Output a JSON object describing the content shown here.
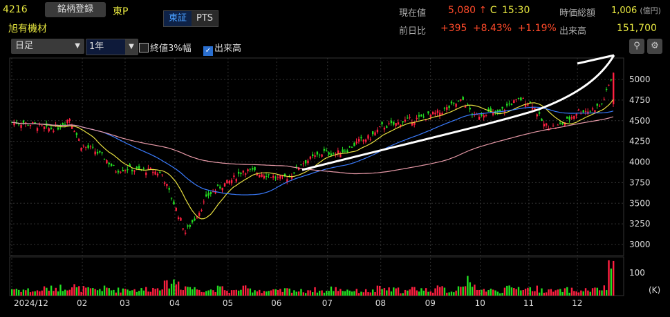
{
  "header": {
    "code": "4216",
    "register_button": "銘柄登録",
    "market": "東P",
    "name": "旭有機材",
    "tab_tse": "東証",
    "tab_pts": "PTS",
    "period_select": "日足",
    "range_select": "1年",
    "checkbox_3pct": "終値3%幅",
    "checkbox_3pct_checked": false,
    "checkbox_volume": "出来高",
    "checkbox_volume_checked": true
  },
  "quote": {
    "price_label": "現在値",
    "price": "5,080",
    "arrow": "↑",
    "close_flag": "C",
    "time": "15:30",
    "mcap_label": "時価総額",
    "mcap": "1,006",
    "mcap_unit": "(億円)",
    "change_label": "前日比",
    "change": "+395",
    "change_pct": "+8.43%",
    "change_extra": "+1.19%",
    "volume_label": "出来高",
    "volume": "151,700"
  },
  "icons": {
    "zoom": "zoom-icon",
    "settings": "gear-icon"
  },
  "colors": {
    "up": "#ff2040",
    "down": "#22e022",
    "ma_short": "#e8e040",
    "ma_mid": "#3a7cff",
    "ma_long": "#e89aa8"
  },
  "chart_data": {
    "type": "candlestick",
    "title": "旭有機材 日足 1年",
    "y_ticks": [
      3000,
      3250,
      3500,
      3750,
      4000,
      4250,
      4500,
      4750,
      5000
    ],
    "ylim": [
      2930,
      5180
    ],
    "x_labels": [
      "2024/12",
      "02",
      "03",
      "04",
      "05",
      "06",
      "07",
      "08",
      "09",
      "10",
      "11",
      "12"
    ],
    "x_label_weeks": [
      0,
      6.1,
      9.8,
      14.1,
      18.7,
      22.9,
      27.3,
      31.9,
      36.2,
      40.5,
      44.7,
      48.9
    ],
    "weekly_close": [
      4480,
      4470,
      4450,
      4400,
      4420,
      4530,
      4200,
      4150,
      4050,
      3900,
      3920,
      3900,
      3900,
      3850,
      3500,
      3150,
      3350,
      3600,
      3700,
      3780,
      3900,
      3880,
      3850,
      3800,
      3820,
      3980,
      4050,
      4120,
      4100,
      4150,
      4250,
      4300,
      4430,
      4450,
      4500,
      4520,
      4560,
      4600,
      4680,
      4750,
      4550,
      4600,
      4580,
      4700,
      4760,
      4700,
      4450,
      4420,
      4500,
      4620,
      4620,
      4700,
      5080
    ],
    "volume_unit": "(K)",
    "volume_ticks": [
      100
    ],
    "vlim": [
      0,
      160
    ],
    "weekly_volume": [
      30,
      25,
      20,
      30,
      35,
      40,
      30,
      25,
      30,
      25,
      30,
      25,
      30,
      45,
      60,
      40,
      30,
      25,
      30,
      20,
      30,
      25,
      20,
      20,
      25,
      20,
      25,
      20,
      30,
      25,
      20,
      20,
      30,
      25,
      20,
      30,
      25,
      30,
      20,
      60,
      40,
      25,
      20,
      30,
      35,
      30,
      25,
      20,
      25,
      20,
      25,
      30,
      151.7
    ]
  }
}
